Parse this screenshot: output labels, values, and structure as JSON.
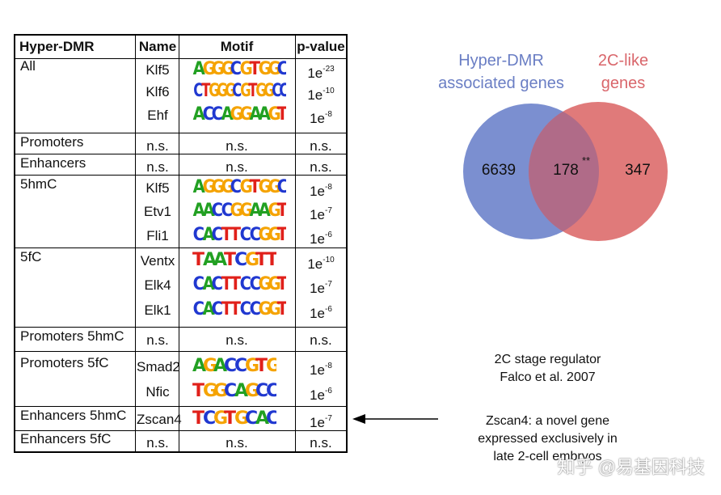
{
  "table": {
    "headers": {
      "region": "Hyper-DMR",
      "name": "Name",
      "motif": "Motif",
      "pvalue": "p-value"
    },
    "rows": [
      {
        "region": "All",
        "name": "Klf5",
        "motif": "AGGGCGTGGC",
        "p_base": "1e",
        "p_exp": "-23"
      },
      {
        "region": "",
        "name": "Klf6",
        "motif": "CTGGGCGTGGCC",
        "p_base": "1e",
        "p_exp": "-10"
      },
      {
        "region": "",
        "name": "Ehf",
        "motif": "ACCAGGAAGT",
        "p_base": "1e",
        "p_exp": "-8"
      },
      {
        "region": "Promoters",
        "name": "n.s.",
        "motif_ns": "n.s.",
        "p_ns": "n.s."
      },
      {
        "region": "Enhancers",
        "name": "n.s.",
        "motif_ns": "n.s.",
        "p_ns": "n.s."
      },
      {
        "region": "5hmC",
        "name": "Klf5",
        "motif": "AGGGCGTGGC",
        "p_base": "1e",
        "p_exp": "-8"
      },
      {
        "region": "",
        "name": "Etv1",
        "motif": "AACCGGAAGT",
        "p_base": "1e",
        "p_exp": "-7"
      },
      {
        "region": "",
        "name": "Fli1",
        "motif": "CACTTCCGGT",
        "p_base": "1e",
        "p_exp": "-6"
      },
      {
        "region": "5fC",
        "name": "Ventx",
        "motif": "TAATCGTT",
        "p_base": "1e",
        "p_exp": "-10"
      },
      {
        "region": "",
        "name": "Elk4",
        "motif": "CACTTCCGGT",
        "p_base": "1e",
        "p_exp": "-7"
      },
      {
        "region": "",
        "name": "Elk1",
        "motif": "CACTTCCGGT",
        "p_base": "1e",
        "p_exp": "-6"
      },
      {
        "region": "Promoters 5hmC",
        "name": "n.s.",
        "motif_ns": "n.s.",
        "p_ns": "n.s."
      },
      {
        "region": "Promoters 5fC",
        "name": "Smad2",
        "motif": "AGACCGTG",
        "p_base": "1e",
        "p_exp": "-8"
      },
      {
        "region": "",
        "name": "Nfic",
        "motif": "TGGCAGCC",
        "p_base": "1e",
        "p_exp": "-6"
      },
      {
        "region": "Enhancers 5hmC",
        "name": "Zscan4",
        "motif": "TCGTGCAC",
        "p_base": "1e",
        "p_exp": "-7"
      },
      {
        "region": "Enhancers 5fC",
        "name": "n.s.",
        "motif_ns": "n.s.",
        "p_ns": "n.s."
      }
    ]
  },
  "venn": {
    "left_label_1": "Hyper-DMR",
    "left_label_2": "associated genes",
    "right_label_1": "2C-like",
    "right_label_2": "genes",
    "left_count": "6639",
    "overlap_count": "178",
    "overlap_sig": "**",
    "right_count": "347",
    "left_color": "#7b8fd0",
    "right_color": "#e07a7a",
    "overlap_color": "#b06b88",
    "left_text_color": "#6a7ec4",
    "right_text_color": "#d9666b"
  },
  "notes": {
    "regulator_1": "2C stage regulator",
    "regulator_2": "Falco et al. 2007",
    "zscan_1": "Zscan4: a novel gene",
    "zscan_2": "expressed exclusively in",
    "zscan_3": "late 2-cell embryos"
  },
  "watermark": "知乎 @易基因科技",
  "base_colors": {
    "A": "#22a022",
    "C": "#2038d0",
    "G": "#f5a300",
    "T": "#e0201a"
  }
}
